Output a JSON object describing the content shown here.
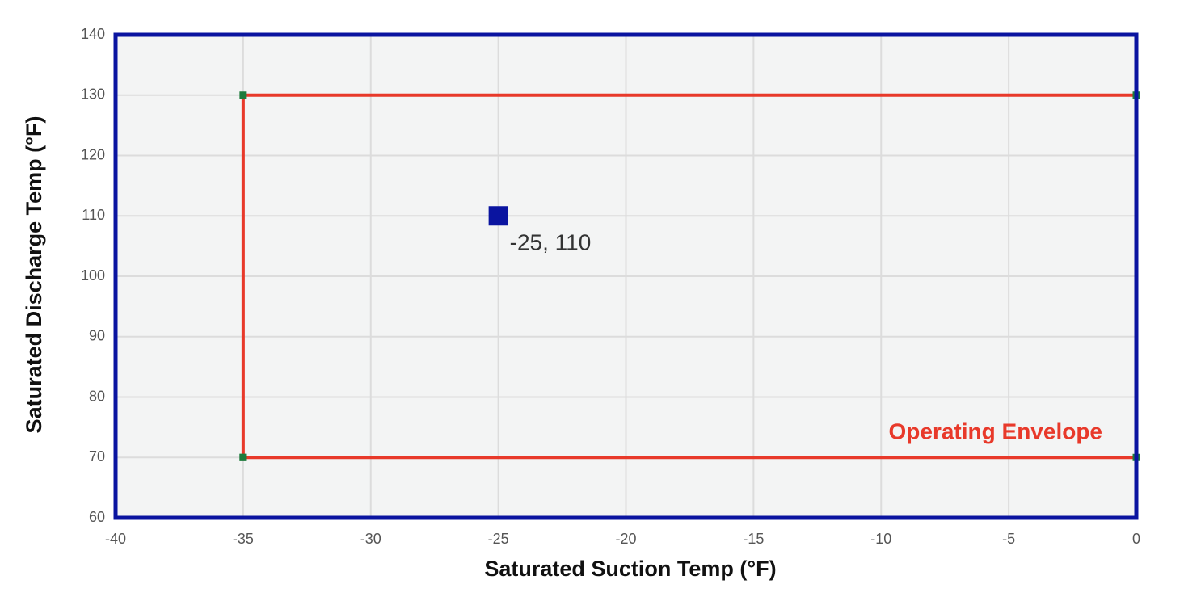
{
  "chart_data": {
    "type": "scatter",
    "xlabel": "Saturated Suction Temp (°F)",
    "ylabel": "Saturated Discharge Temp (°F)",
    "xlim": [
      -40,
      0
    ],
    "ylim": [
      60,
      140
    ],
    "xticks": [
      -40,
      -35,
      -30,
      -25,
      -20,
      -15,
      -10,
      -5,
      0
    ],
    "yticks": [
      60,
      70,
      80,
      90,
      100,
      110,
      120,
      130,
      140
    ],
    "grid": true,
    "series": [
      {
        "name": "Operating Envelope",
        "color": "#e8392a",
        "marker_color": "#1e7b3c",
        "x": [
          -35,
          -35,
          0,
          0,
          -35
        ],
        "values": [
          70,
          130,
          130,
          70,
          70
        ]
      }
    ],
    "point": {
      "x": -25,
      "y": 110,
      "label": "-25, 110",
      "color": "#0a14a0"
    }
  }
}
